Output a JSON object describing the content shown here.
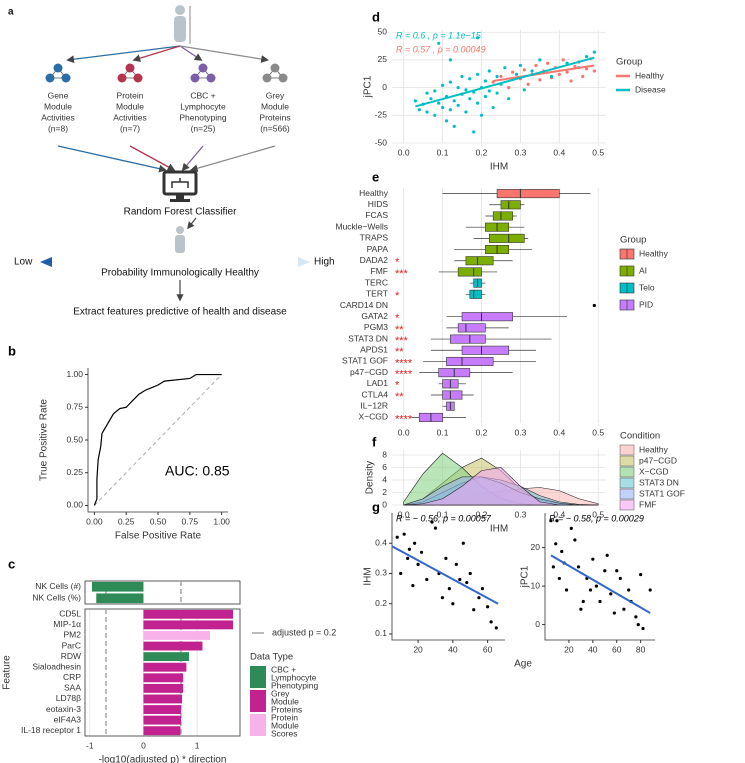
{
  "diagram": {
    "panel_label": "a",
    "sources": [
      {
        "label": [
          "Gene",
          "Module",
          "Activities",
          "(n=8)"
        ],
        "color": "#2a6ea6"
      },
      {
        "label": [
          "Protein",
          "Module",
          "Activities",
          "(n=7)"
        ],
        "color": "#b5344f"
      },
      {
        "label": [
          "CBC +",
          "Lymphocyte",
          "Phenotyping",
          "(n=25)"
        ],
        "color": "#7b5ea7"
      },
      {
        "label": [
          "Grey",
          "Module",
          "Proteins",
          "(n=566)"
        ],
        "color": "#8a8a8a"
      }
    ],
    "classifier": "Random Forest Classifier",
    "scale_low": "Low",
    "scale_high": "High",
    "scale_label": "Probability Immunologically Healthy",
    "outcome": "Extract features predictive of health and disease"
  },
  "chart_data": [
    {
      "type": "line",
      "panel_label": "b",
      "x_label": "False Positive Rate",
      "y_label": "True Positive Rate",
      "xlim": [
        -0.05,
        1.05
      ],
      "ylim": [
        -0.05,
        1.05
      ],
      "axis_lines": true,
      "xticks": [
        {
          "value": 0,
          "label": "0.00"
        },
        {
          "value": 0.25,
          "label": "0.25"
        },
        {
          "value": 0.5,
          "label": "0.50"
        },
        {
          "value": 0.75,
          "label": "0.75"
        },
        {
          "value": 1,
          "label": "1.00"
        }
      ],
      "yticks": [
        {
          "value": 0,
          "label": "0.00"
        },
        {
          "value": 0.25,
          "label": "0.25"
        },
        {
          "value": 0.5,
          "label": "0.50"
        },
        {
          "value": 0.75,
          "label": "0.75"
        },
        {
          "value": 1,
          "label": "1.00"
        }
      ],
      "series": [
        {
          "color": "#000000",
          "x": [
            0,
            0.02,
            0.02,
            0.03,
            0.05,
            0.06,
            0.09,
            0.12,
            0.15,
            0.2,
            0.25,
            0.3,
            0.35,
            0.4,
            0.45,
            0.5,
            0.55,
            0.75,
            0.8,
            1
          ],
          "values": [
            0,
            0.05,
            0.2,
            0.35,
            0.45,
            0.55,
            0.6,
            0.65,
            0.7,
            0.74,
            0.75,
            0.8,
            0.85,
            0.88,
            0.9,
            0.92,
            0.95,
            0.97,
            1,
            1
          ]
        }
      ],
      "annotation": "AUC: 0.85"
    },
    {
      "type": "bar",
      "orientation": "horizontal",
      "panel_label": "c",
      "categories": [
        "NK Cells (#)",
        "NK Cells (%)"
      ],
      "values": [
        -0.96,
        -0.88
      ],
      "colors": [
        "#2e8b57",
        "#2e8b57"
      ],
      "xlim": [
        -1.09,
        1.8
      ],
      "thresholds": [
        -0.699,
        0.699
      ],
      "panel_border": true
    },
    {
      "type": "bar",
      "orientation": "horizontal",
      "x_label": "-log10(adjusted p) * direction",
      "y_label": "Feature",
      "categories": [
        "CD5L",
        "MIP-1α",
        "PM2",
        "ParC",
        "RDW",
        "Sialoadhesin",
        "CRP",
        "SAA",
        "LD78β",
        "eotaxin-3",
        "eIF4A3",
        "IL-18 receptor 1"
      ],
      "values": [
        1.67,
        1.67,
        1.24,
        1.1,
        0.85,
        0.8,
        0.74,
        0.74,
        0.72,
        0.7,
        0.7,
        0.69
      ],
      "colors": [
        "#c2228f",
        "#c2228f",
        "#f7b2ea",
        "#c2228f",
        "#2e8b57",
        "#c2228f",
        "#c2228f",
        "#c2228f",
        "#c2228f",
        "#c2228f",
        "#c2228f",
        "#c2228f"
      ],
      "xlim": [
        -1.09,
        1.8
      ],
      "xticks": [
        -1,
        0,
        1
      ],
      "grid": true,
      "panel_border": true,
      "thresholds": [
        -0.699,
        0.699
      ],
      "threshold_label": "adjusted p = 0.2",
      "legend_title": "Data Type",
      "legend": [
        {
          "name": [
            "CBC +",
            "Lymphocyte",
            "Phenotyping"
          ],
          "color": "#2e8b57"
        },
        {
          "name": [
            "Grey",
            "Module",
            "Proteins"
          ],
          "color": "#c2228f"
        },
        {
          "name": [
            "Protein",
            "Module",
            "Scores"
          ],
          "color": "#f7b2ea"
        }
      ]
    },
    {
      "type": "scatter",
      "panel_label": "d",
      "x_label": "IHM",
      "y_label": "jPC1",
      "xlim": [
        -0.03,
        0.52
      ],
      "ylim": [
        -50,
        52
      ],
      "grid": true,
      "xticks": [
        {
          "value": 0,
          "label": "0.0"
        },
        0.1,
        0.2,
        0.3,
        0.4,
        0.5
      ],
      "yticks": [
        -50,
        -25,
        0,
        25,
        50
      ],
      "legend_title": "Group",
      "series": [
        {
          "name": "Healthy",
          "color": "#f8766d",
          "x": [
            0.23,
            0.25,
            0.27,
            0.28,
            0.3,
            0.31,
            0.32,
            0.33,
            0.34,
            0.35,
            0.36,
            0.37,
            0.38,
            0.39,
            0.4,
            0.41,
            0.42,
            0.43,
            0.44,
            0.45,
            0.46,
            0.47,
            0.48,
            0.49
          ],
          "values": [
            5,
            10,
            0,
            14,
            8,
            16,
            3,
            12,
            20,
            7,
            15,
            22,
            9,
            18,
            12,
            25,
            14,
            6,
            19,
            23,
            10,
            17,
            26,
            15
          ],
          "fit": {
            "x": [
              0.23,
              0.49
            ],
            "y": [
              6,
              20
            ]
          }
        },
        {
          "name": "Disease",
          "color": "#00bfc4",
          "x": [
            0.03,
            0.04,
            0.05,
            0.06,
            0.06,
            0.07,
            0.08,
            0.08,
            0.09,
            0.1,
            0.1,
            0.11,
            0.11,
            0.12,
            0.12,
            0.13,
            0.13,
            0.14,
            0.14,
            0.15,
            0.15,
            0.16,
            0.16,
            0.17,
            0.17,
            0.18,
            0.18,
            0.19,
            0.19,
            0.2,
            0.2,
            0.21,
            0.21,
            0.22,
            0.22,
            0.23,
            0.24,
            0.24,
            0.25,
            0.26,
            0.27,
            0.28,
            0.29,
            0.3,
            0.31,
            0.33,
            0.35,
            0.38,
            0.42,
            0.45,
            0.47,
            0.49,
            0.19,
            0.09,
            0.12
          ],
          "values": [
            -12,
            -20,
            -15,
            -5,
            -22,
            -10,
            -25,
            -3,
            -14,
            -18,
            2,
            -30,
            -8,
            -20,
            5,
            -12,
            -35,
            0,
            -16,
            -6,
            10,
            -22,
            -2,
            -10,
            8,
            -40,
            -4,
            12,
            -14,
            0,
            -25,
            6,
            -8,
            15,
            -3,
            -18,
            10,
            -5,
            3,
            18,
            -10,
            8,
            12,
            20,
            -2,
            15,
            25,
            10,
            22,
            18,
            28,
            32,
            45,
            40,
            25
          ],
          "fit": {
            "x": [
              0.03,
              0.49
            ],
            "y": [
              -17,
              27
            ]
          }
        }
      ],
      "annotations": [
        {
          "text": "R = 0.6 , p = 1.1e−15",
          "color": "#00bfc4"
        },
        {
          "text": "R = 0.57 , p = 0.00049",
          "color": "#f8766d"
        }
      ]
    },
    {
      "type": "box",
      "panel_label": "e",
      "categories": [
        "Healthy",
        "HIDS",
        "FCAS",
        "Muckle−Wells",
        "TRAPS",
        "PAPA",
        "DADA2",
        "FMF",
        "TERC",
        "TERT",
        "CARD14 DN",
        "GATA2",
        "PGM3",
        "STAT3 DN",
        "APDS1",
        "STAT1 GOF",
        "p47−CGD",
        "LAD1",
        "CTLA4",
        "IL−12R",
        "X−CGD"
      ],
      "min": [
        0.1,
        0.22,
        0.21,
        0.16,
        0.18,
        0.13,
        0.13,
        0.09,
        0.17,
        0.16,
        null,
        0.11,
        0.11,
        0.07,
        0.07,
        0.05,
        0.04,
        0.09,
        0.07,
        0.1,
        0.02
      ],
      "q1": [
        0.24,
        0.25,
        0.23,
        0.21,
        0.22,
        0.21,
        0.16,
        0.14,
        0.18,
        0.17,
        null,
        0.15,
        0.14,
        0.12,
        0.15,
        0.11,
        0.09,
        0.1,
        0.1,
        0.11,
        0.04
      ],
      "median": [
        0.3,
        0.27,
        0.25,
        0.24,
        0.27,
        0.24,
        0.19,
        0.18,
        0.19,
        0.18,
        0.49,
        0.2,
        0.16,
        0.17,
        0.2,
        0.15,
        0.13,
        0.12,
        0.12,
        0.12,
        0.07
      ],
      "q3": [
        0.4,
        0.3,
        0.28,
        0.27,
        0.31,
        0.27,
        0.23,
        0.2,
        0.2,
        0.2,
        null,
        0.28,
        0.21,
        0.21,
        0.27,
        0.23,
        0.17,
        0.14,
        0.15,
        0.13,
        0.1
      ],
      "max": [
        0.48,
        0.31,
        0.29,
        0.31,
        0.32,
        0.33,
        0.28,
        0.24,
        0.21,
        0.21,
        null,
        0.42,
        0.27,
        0.38,
        0.34,
        0.34,
        0.28,
        0.16,
        0.18,
        0.13,
        0.16
      ],
      "colors": [
        "#f8766d",
        "#7cae00",
        "#7cae00",
        "#7cae00",
        "#7cae00",
        "#7cae00",
        "#7cae00",
        "#7cae00",
        "#00bfc4",
        "#00bfc4",
        "#c77cff",
        "#c77cff",
        "#c77cff",
        "#c77cff",
        "#c77cff",
        "#c77cff",
        "#c77cff",
        "#c77cff",
        "#c77cff",
        "#c77cff",
        "#c77cff"
      ],
      "significance": [
        null,
        null,
        null,
        null,
        null,
        null,
        "*",
        "***",
        null,
        "*",
        null,
        "*",
        "**",
        "***",
        "**",
        "****",
        "****",
        "*",
        "**",
        null,
        "****"
      ],
      "xlim": [
        -0.03,
        0.52
      ],
      "grid": true,
      "xticks": [
        {
          "value": 0,
          "label": "0.0"
        },
        0.1,
        0.2,
        0.3,
        0.4,
        0.5
      ],
      "legend_title": "Group",
      "legend": [
        {
          "name": "Healthy",
          "color": "#f8766d"
        },
        {
          "name": "AI",
          "color": "#7cae00"
        },
        {
          "name": "Telo",
          "color": "#00bfc4"
        },
        {
          "name": "PID",
          "color": "#c77cff"
        }
      ]
    },
    {
      "type": "area",
      "panel_label": "f",
      "x_label": "IHM",
      "y_label": "Density",
      "xlim": [
        -0.03,
        0.52
      ],
      "ylim": [
        0,
        8.8
      ],
      "grid": true,
      "xticks": [
        {
          "value": 0,
          "label": "0.0"
        },
        0.1,
        0.2,
        0.3,
        0.4,
        0.5
      ],
      "yticks": [
        0,
        2,
        4,
        6,
        8
      ],
      "legend_title": "Condition",
      "x": [
        0,
        0.05,
        0.1,
        0.15,
        0.2,
        0.25,
        0.3,
        0.35,
        0.4,
        0.45,
        0.5
      ],
      "series": [
        {
          "name": "Healthy",
          "color": "#f8b4b0",
          "values": [
            0,
            0.3,
            0.8,
            1.3,
            1.8,
            2.2,
            2.6,
            2.8,
            2.3,
            1.0,
            0.2
          ]
        },
        {
          "name": "p47−CGD",
          "color": "#c9c36c",
          "values": [
            0,
            1,
            3.5,
            6,
            7.5,
            5.5,
            2.5,
            0.8,
            0.2,
            0,
            0
          ]
        },
        {
          "name": "X−CGD",
          "color": "#7fcf7f",
          "values": [
            0.5,
            5,
            8.3,
            6,
            3,
            1,
            0.2,
            0,
            0,
            0,
            0
          ]
        },
        {
          "name": "STAT3 DN",
          "color": "#6cc6d4",
          "values": [
            0,
            0.5,
            2,
            3.5,
            4.5,
            4,
            3,
            1.5,
            0.5,
            0.1,
            0
          ]
        },
        {
          "name": "STAT1 GOF",
          "color": "#9ab3f5",
          "values": [
            0,
            1,
            3,
            4.5,
            4.5,
            3.5,
            2,
            1,
            0.3,
            0,
            0
          ]
        },
        {
          "name": "FMF",
          "color": "#f4a3f0",
          "values": [
            0,
            0.2,
            1,
            3,
            5.5,
            6,
            3,
            0.5,
            0,
            0,
            0
          ]
        }
      ]
    },
    {
      "type": "scatter",
      "panel_label": "g",
      "y_label": "IHM",
      "x_label": "Age",
      "axis_lines": true,
      "xlim": [
        5,
        70
      ],
      "ylim": [
        0.08,
        0.5
      ],
      "xticks": [
        20,
        40,
        60
      ],
      "yticks": [
        0.1,
        0.2,
        0.3,
        0.4
      ],
      "series": [
        {
          "color": "#000000",
          "x": [
            8,
            10,
            12,
            14,
            15,
            17,
            18,
            20,
            22,
            25,
            28,
            30,
            32,
            34,
            36,
            38,
            40,
            42,
            44,
            46,
            48,
            50,
            52,
            55,
            57,
            60,
            62,
            65
          ],
          "values": [
            0.42,
            0.3,
            0.43,
            0.35,
            0.38,
            0.26,
            0.4,
            0.33,
            0.37,
            0.28,
            0.47,
            0.45,
            0.3,
            0.22,
            0.35,
            0.25,
            0.2,
            0.33,
            0.28,
            0.4,
            0.27,
            0.3,
            0.18,
            0.22,
            0.25,
            0.19,
            0.14,
            0.12
          ],
          "fit": {
            "x": [
              5,
              66
            ],
            "y": [
              0.39,
              0.2
            ]
          }
        }
      ],
      "annotations": [
        {
          "text": "R = − 0.56, p = 0.00057",
          "color": "#000000"
        }
      ]
    },
    {
      "type": "scatter",
      "y_label": "jPC1",
      "axis_lines": true,
      "xlim": [
        0,
        92
      ],
      "ylim": [
        -4,
        29
      ],
      "xticks": [
        20,
        40,
        60,
        80
      ],
      "yticks": [
        0,
        10,
        20
      ],
      "series": [
        {
          "color": "#000000",
          "x": [
            5,
            7,
            9,
            10,
            12,
            14,
            16,
            18,
            22,
            25,
            28,
            30,
            32,
            35,
            38,
            40,
            43,
            46,
            50,
            52,
            55,
            58,
            60,
            63,
            66,
            70,
            72,
            76,
            78,
            80,
            82,
            88
          ],
          "values": [
            27,
            15,
            21,
            27,
            12,
            19,
            16,
            9,
            25,
            22,
            15,
            4,
            6,
            12,
            9,
            17,
            10,
            6,
            14,
            18,
            8,
            3,
            14,
            12,
            4,
            9,
            6,
            2,
            0,
            13,
            -1,
            9
          ],
          "fit": {
            "x": [
              5,
              88
            ],
            "y": [
              18,
              3
            ]
          }
        }
      ],
      "annotations": [
        {
          "text": "R = − 0.58, p = 0.00029",
          "color": "#000000"
        }
      ]
    }
  ]
}
